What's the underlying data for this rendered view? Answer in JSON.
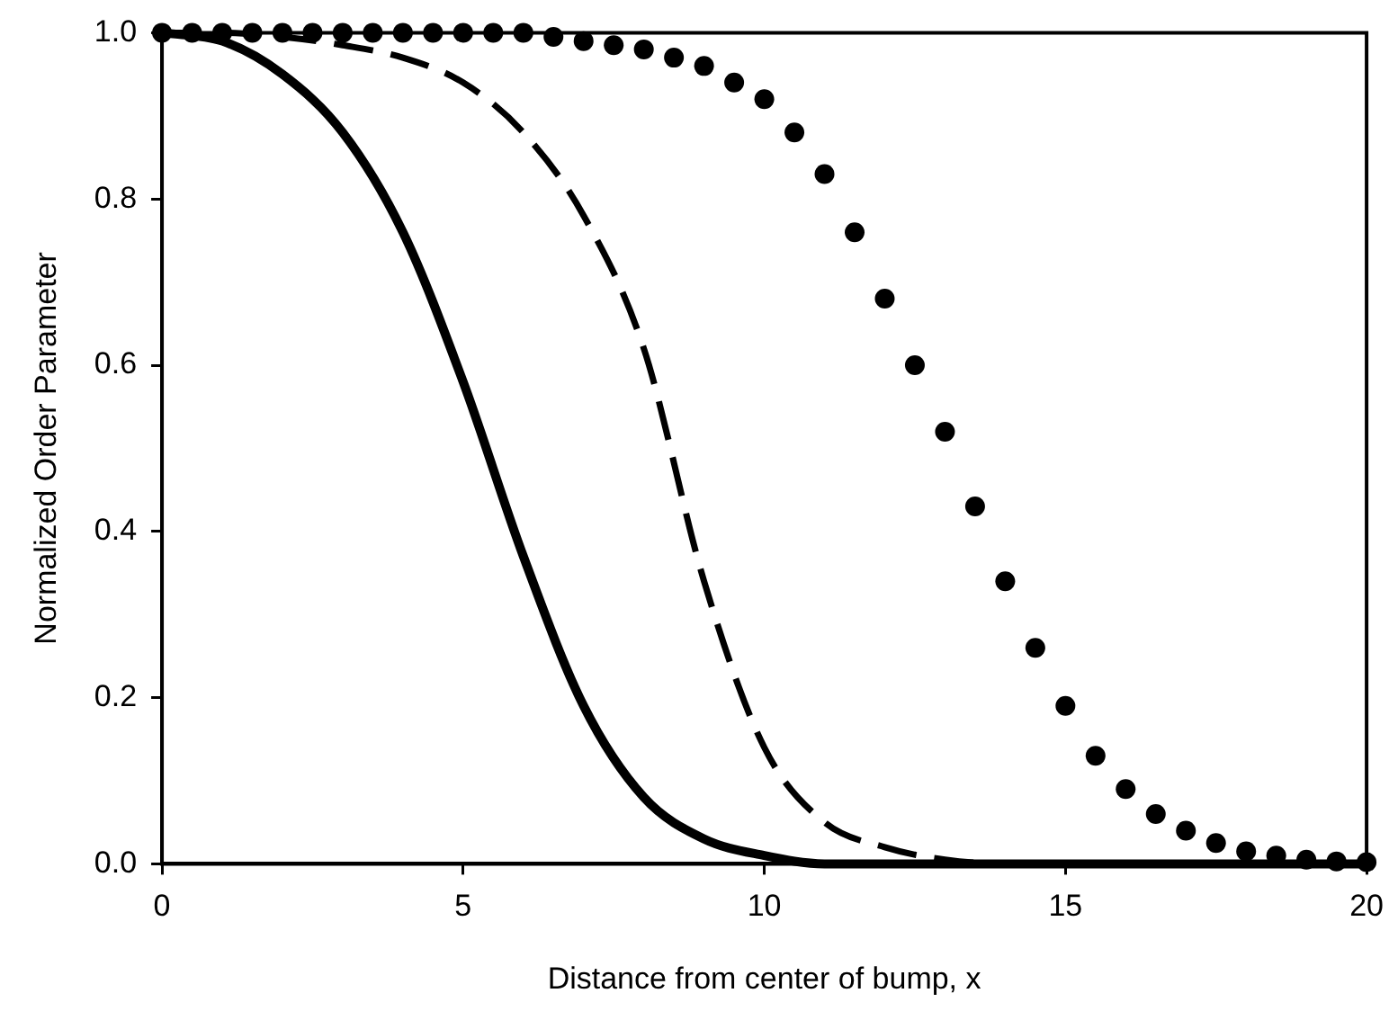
{
  "chart_data": {
    "type": "line",
    "xlabel": "Distance from center of bump, x",
    "ylabel": "Normalized Order Parameter",
    "xlim": [
      0,
      20
    ],
    "xticks": [
      0,
      5,
      10,
      15,
      20
    ],
    "ylim": [
      0,
      1
    ],
    "yticks": [
      {
        "value": 0,
        "label": "0.0"
      },
      {
        "value": 0.2,
        "label": "0.2"
      },
      {
        "value": 0.4,
        "label": "0.4"
      },
      {
        "value": 0.6,
        "label": "0.6"
      },
      {
        "value": 0.8,
        "label": "0.8"
      },
      {
        "value": 1,
        "label": "1.0"
      }
    ],
    "grid": false,
    "legend": false,
    "series": [
      {
        "type": "line",
        "color": "#000000",
        "line_style": "solid",
        "marker": "none",
        "x": [
          0,
          1,
          2,
          3,
          4,
          5,
          6,
          7,
          8,
          9,
          10,
          11,
          12,
          14,
          16,
          18,
          20
        ],
        "values": [
          1,
          0.99,
          0.95,
          0.88,
          0.76,
          0.58,
          0.37,
          0.19,
          0.08,
          0.03,
          0.01,
          0,
          0,
          0,
          0,
          0,
          0
        ]
      },
      {
        "type": "line",
        "color": "#000000",
        "line_style": "dashed",
        "marker": "none",
        "x": [
          0,
          1,
          2,
          3,
          4,
          5,
          6,
          7,
          8,
          9,
          10,
          11,
          12,
          13,
          14,
          16,
          18,
          20
        ],
        "values": [
          1,
          1,
          0.995,
          0.985,
          0.97,
          0.94,
          0.88,
          0.78,
          0.62,
          0.34,
          0.14,
          0.05,
          0.02,
          0.005,
          0,
          0,
          0,
          0
        ]
      },
      {
        "type": "scatter",
        "color": "#000000",
        "marker": "circle",
        "x": [
          0,
          0.5,
          1,
          1.5,
          2,
          2.5,
          3,
          3.5,
          4,
          4.5,
          5,
          5.5,
          6,
          6.5,
          7,
          7.5,
          8,
          8.5,
          9,
          9.5,
          10,
          10.5,
          11,
          11.5,
          12,
          12.5,
          13,
          13.5,
          14,
          14.5,
          15,
          15.5,
          16,
          16.5,
          17,
          17.5,
          18,
          18.5,
          19,
          19.5,
          20
        ],
        "values": [
          1,
          1,
          1,
          1,
          1,
          1,
          1,
          1,
          1,
          1,
          1,
          1,
          1,
          0.995,
          0.99,
          0.985,
          0.98,
          0.97,
          0.96,
          0.94,
          0.92,
          0.88,
          0.83,
          0.76,
          0.68,
          0.6,
          0.52,
          0.43,
          0.34,
          0.26,
          0.19,
          0.13,
          0.09,
          0.06,
          0.04,
          0.025,
          0.015,
          0.01,
          0.005,
          0.003,
          0.002
        ]
      }
    ]
  }
}
